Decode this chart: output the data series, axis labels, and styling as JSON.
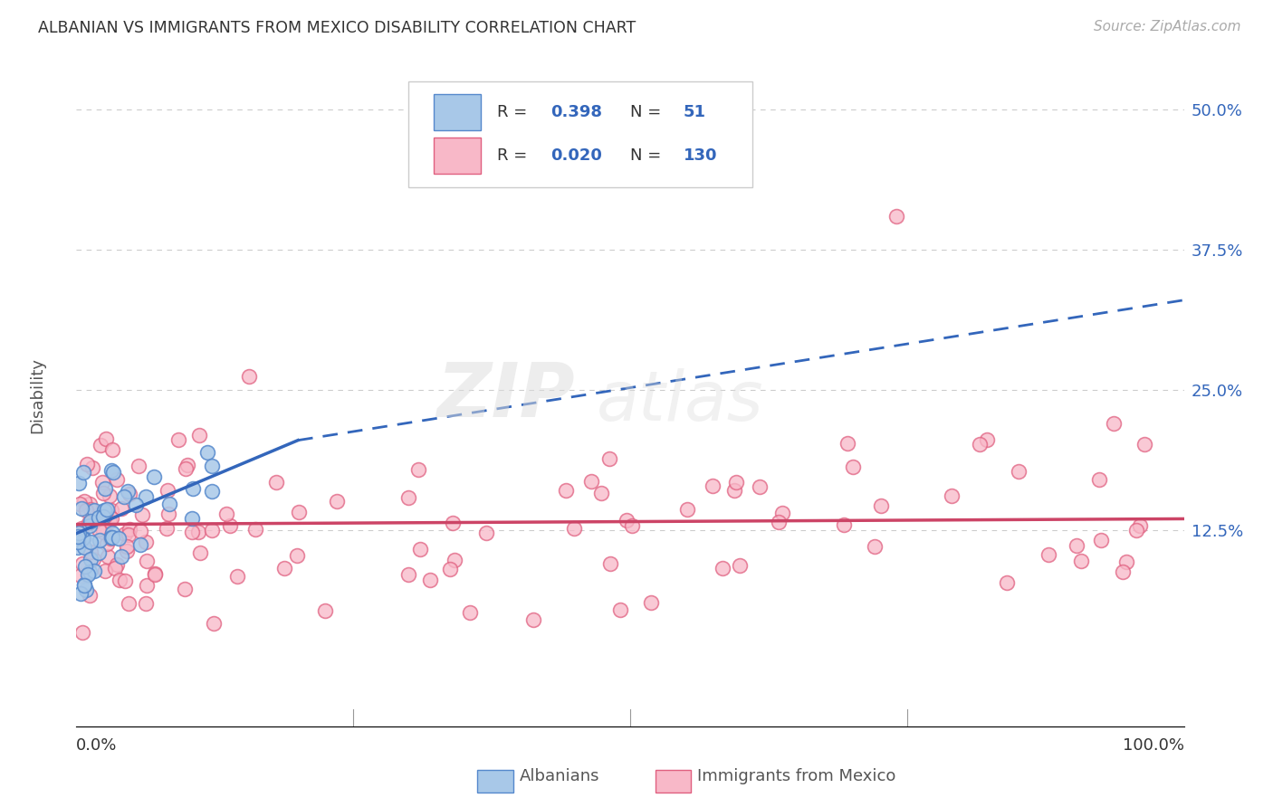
{
  "title": "ALBANIAN VS IMMIGRANTS FROM MEXICO DISABILITY CORRELATION CHART",
  "source": "Source: ZipAtlas.com",
  "ylabel": "Disability",
  "albanian_color": "#a8c8e8",
  "albanian_edge_color": "#5588cc",
  "albanian_line_color": "#3366bb",
  "mexico_color": "#f8b8c8",
  "mexico_edge_color": "#e06080",
  "mexico_line_color": "#cc4466",
  "background_color": "#ffffff",
  "grid_color": "#cccccc",
  "title_color": "#333333",
  "axis_label_color": "#555555",
  "legend_R_color": "#3366bb",
  "ytick_color": "#3366bb",
  "albanian_R": "0.398",
  "albanian_N": "51",
  "mexico_R": "0.020",
  "mexico_N": "130",
  "alb_reg_x0": 0.0,
  "alb_reg_y0": 12.2,
  "alb_reg_x1": 20.0,
  "alb_reg_y1": 20.5,
  "alb_reg_x2": 100.0,
  "alb_reg_y2": 33.0,
  "mex_reg_x0": 0.0,
  "mex_reg_y0": 13.0,
  "mex_reg_x1": 100.0,
  "mex_reg_y1": 13.5,
  "xlim": [
    0,
    100
  ],
  "ylim": [
    -5,
    54
  ],
  "ytick_vals": [
    12.5,
    25.0,
    37.5,
    50.0
  ],
  "ytick_labels": [
    "12.5%",
    "25.0%",
    "37.5%",
    "50.0%"
  ],
  "figsize": [
    14.06,
    8.92
  ],
  "dpi": 100,
  "scatter_size": 130,
  "watermark": "ZIPatlas",
  "watermark_zip": "ZIP",
  "watermark_atlas": "atlas"
}
